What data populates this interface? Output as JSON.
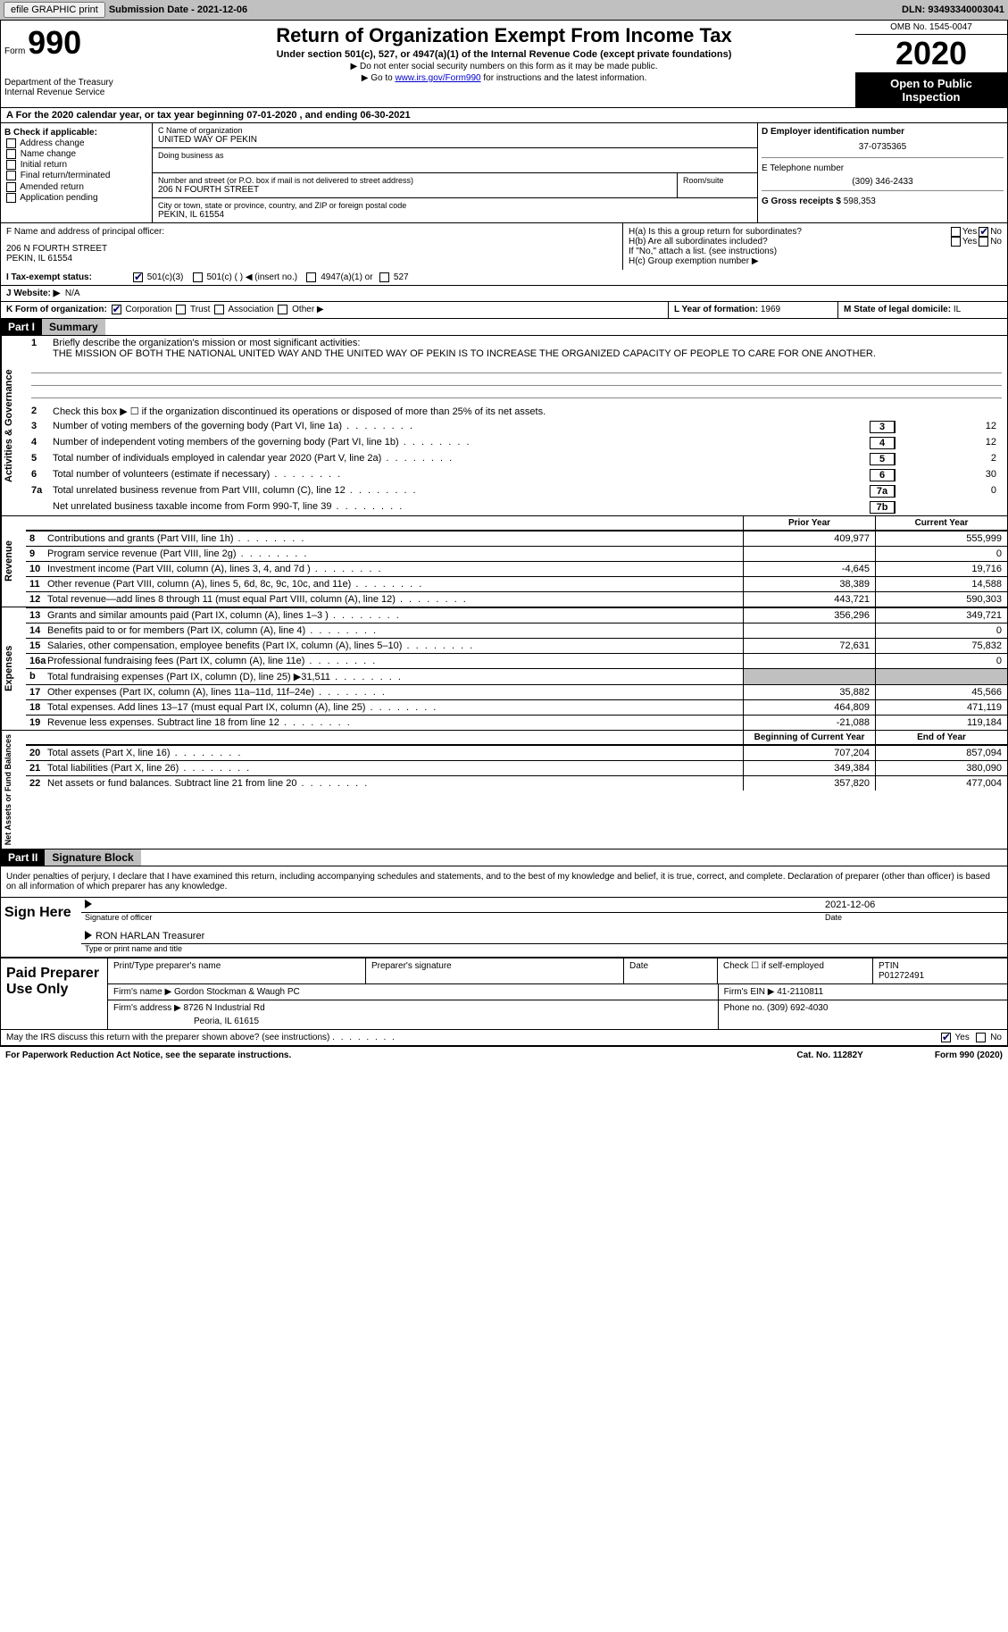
{
  "topbar": {
    "efile_btn": "efile GRAPHIC print",
    "sub_label": "Submission Date - 2021-12-06",
    "dln": "DLN: 93493340003041"
  },
  "header": {
    "form_word": "Form",
    "form_number": "990",
    "dept": "Department of the Treasury",
    "irs": "Internal Revenue Service",
    "title": "Return of Organization Exempt From Income Tax",
    "subtitle": "Under section 501(c), 527, or 4947(a)(1) of the Internal Revenue Code (except private foundations)",
    "arrow1": "▶ Do not enter social security numbers on this form as it may be made public.",
    "arrow2_pre": "▶ Go to ",
    "arrow2_link": "www.irs.gov/Form990",
    "arrow2_post": " for instructions and the latest information.",
    "omb": "OMB No. 1545-0047",
    "year": "2020",
    "inspection1": "Open to Public",
    "inspection2": "Inspection"
  },
  "period": "For the 2020 calendar year, or tax year beginning 07-01-2020   , and ending 06-30-2021",
  "boxB": {
    "hdr": "B Check if applicable:",
    "items": [
      "Address change",
      "Name change",
      "Initial return",
      "Final return/terminated",
      "Amended return",
      "Application pending"
    ]
  },
  "boxC": {
    "name_lbl": "C Name of organization",
    "name": "UNITED WAY OF PEKIN",
    "dba_lbl": "Doing business as",
    "addr_lbl": "Number and street (or P.O. box if mail is not delivered to street address)",
    "room_lbl": "Room/suite",
    "addr": "206 N FOURTH STREET",
    "city_lbl": "City or town, state or province, country, and ZIP or foreign postal code",
    "city": "PEKIN, IL  61554"
  },
  "boxD": {
    "lbl": "D Employer identification number",
    "val": "37-0735365"
  },
  "boxE": {
    "lbl": "E Telephone number",
    "val": "(309) 346-2433"
  },
  "boxG": {
    "lbl": "G Gross receipts $",
    "val": "598,353"
  },
  "boxF": {
    "lbl": "F  Name and address of principal officer:",
    "addr1": "206 N FOURTH STREET",
    "addr2": "PEKIN, IL  61554"
  },
  "boxH": {
    "a_lbl": "H(a)  Is this a group return for subordinates?",
    "yes": "Yes",
    "no": "No",
    "b_lbl": "H(b)  Are all subordinates included?",
    "b_note": "If \"No,\" attach a list. (see instructions)",
    "c_lbl": "H(c)  Group exemption number ▶"
  },
  "rowI": {
    "lbl": "I  Tax-exempt status:",
    "o1": "501(c)(3)",
    "o2": "501(c) (  ) ◀ (insert no.)",
    "o3": "4947(a)(1) or",
    "o4": "527"
  },
  "rowJ": {
    "lbl": "J  Website: ▶",
    "val": "N/A"
  },
  "rowK": {
    "lbl": "K Form of organization:",
    "o1": "Corporation",
    "o2": "Trust",
    "o3": "Association",
    "o4": "Other ▶"
  },
  "rowL": {
    "lbl": "L Year of formation:",
    "val": "1969"
  },
  "rowM": {
    "lbl": "M State of legal domicile:",
    "val": "IL"
  },
  "part1": {
    "hdr": "Part I",
    "title": "Summary"
  },
  "summary": {
    "gov_label": "Activities & Governance",
    "line1_lbl": "Briefly describe the organization's mission or most significant activities:",
    "line1_txt": "THE MISSION OF BOTH THE NATIONAL UNITED WAY AND THE UNITED WAY OF PEKIN IS TO INCREASE THE ORGANIZED CAPACITY OF PEOPLE TO CARE FOR ONE ANOTHER.",
    "line2": "Check this box ▶ ☐  if the organization discontinued its operations or disposed of more than 25% of its net assets.",
    "lines": [
      {
        "n": "3",
        "t": "Number of voting members of the governing body (Part VI, line 1a)",
        "box": "3",
        "v": "12"
      },
      {
        "n": "4",
        "t": "Number of independent voting members of the governing body (Part VI, line 1b)",
        "box": "4",
        "v": "12"
      },
      {
        "n": "5",
        "t": "Total number of individuals employed in calendar year 2020 (Part V, line 2a)",
        "box": "5",
        "v": "2"
      },
      {
        "n": "6",
        "t": "Total number of volunteers (estimate if necessary)",
        "box": "6",
        "v": "30"
      },
      {
        "n": "7a",
        "t": "Total unrelated business revenue from Part VIII, column (C), line 12",
        "box": "7a",
        "v": "0"
      },
      {
        "n": "",
        "t": "Net unrelated business taxable income from Form 990-T, line 39",
        "box": "7b",
        "v": ""
      }
    ],
    "rev_label": "Revenue",
    "col_prior": "Prior Year",
    "col_current": "Current Year",
    "rev_lines": [
      {
        "n": "8",
        "t": "Contributions and grants (Part VIII, line 1h)",
        "p": "409,977",
        "c": "555,999"
      },
      {
        "n": "9",
        "t": "Program service revenue (Part VIII, line 2g)",
        "p": "",
        "c": "0"
      },
      {
        "n": "10",
        "t": "Investment income (Part VIII, column (A), lines 3, 4, and 7d )",
        "p": "-4,645",
        "c": "19,716"
      },
      {
        "n": "11",
        "t": "Other revenue (Part VIII, column (A), lines 5, 6d, 8c, 9c, 10c, and 11e)",
        "p": "38,389",
        "c": "14,588"
      },
      {
        "n": "12",
        "t": "Total revenue—add lines 8 through 11 (must equal Part VIII, column (A), line 12)",
        "p": "443,721",
        "c": "590,303"
      }
    ],
    "exp_label": "Expenses",
    "exp_lines": [
      {
        "n": "13",
        "t": "Grants and similar amounts paid (Part IX, column (A), lines 1–3 )",
        "p": "356,296",
        "c": "349,721"
      },
      {
        "n": "14",
        "t": "Benefits paid to or for members (Part IX, column (A), line 4)",
        "p": "",
        "c": "0"
      },
      {
        "n": "15",
        "t": "Salaries, other compensation, employee benefits (Part IX, column (A), lines 5–10)",
        "p": "72,631",
        "c": "75,832"
      },
      {
        "n": "16a",
        "t": "Professional fundraising fees (Part IX, column (A), line 11e)",
        "p": "",
        "c": "0"
      },
      {
        "n": "b",
        "t": "Total fundraising expenses (Part IX, column (D), line 25) ▶31,511",
        "p": "__shaded__",
        "c": "__shaded__"
      },
      {
        "n": "17",
        "t": "Other expenses (Part IX, column (A), lines 11a–11d, 11f–24e)",
        "p": "35,882",
        "c": "45,566"
      },
      {
        "n": "18",
        "t": "Total expenses. Add lines 13–17 (must equal Part IX, column (A), line 25)",
        "p": "464,809",
        "c": "471,119"
      },
      {
        "n": "19",
        "t": "Revenue less expenses. Subtract line 18 from line 12",
        "p": "-21,088",
        "c": "119,184"
      }
    ],
    "na_label": "Net Assets or Fund Balances",
    "col_begin": "Beginning of Current Year",
    "col_end": "End of Year",
    "na_lines": [
      {
        "n": "20",
        "t": "Total assets (Part X, line 16)",
        "p": "707,204",
        "c": "857,094"
      },
      {
        "n": "21",
        "t": "Total liabilities (Part X, line 26)",
        "p": "349,384",
        "c": "380,090"
      },
      {
        "n": "22",
        "t": "Net assets or fund balances. Subtract line 21 from line 20",
        "p": "357,820",
        "c": "477,004"
      }
    ]
  },
  "part2": {
    "hdr": "Part II",
    "title": "Signature Block"
  },
  "sig": {
    "jurat": "Under penalties of perjury, I declare that I have examined this return, including accompanying schedules and statements, and to the best of my knowledge and belief, it is true, correct, and complete. Declaration of preparer (other than officer) is based on all information of which preparer has any knowledge.",
    "sign_here": "Sign Here",
    "sig_officer": "Signature of officer",
    "date_lbl": "Date",
    "date": "2021-12-06",
    "name": "RON HARLAN Treasurer",
    "name_lbl": "Type or print name and title"
  },
  "paid": {
    "lbl": "Paid Preparer Use Only",
    "r1c1": "Print/Type preparer's name",
    "r1c2": "Preparer's signature",
    "r1c3": "Date",
    "r1c4a": "Check ☐ if self-employed",
    "r1c4b_lbl": "PTIN",
    "r1c4b": "P01272491",
    "r2a": "Firm's name    ▶",
    "r2b": "Gordon Stockman & Waugh PC",
    "r2c_lbl": "Firm's EIN ▶",
    "r2c": "41-2110811",
    "r3a": "Firm's address ▶",
    "r3b": "8726 N Industrial Rd",
    "r3c": "Peoria, IL  61615",
    "r3d_lbl": "Phone no.",
    "r3d": "(309) 692-4030"
  },
  "discuss": {
    "txt": "May the IRS discuss this return with the preparer shown above? (see instructions)",
    "yes": "Yes",
    "no": "No"
  },
  "footer": {
    "l": "For Paperwork Reduction Act Notice, see the separate instructions.",
    "m": "Cat. No. 11282Y",
    "r": "Form 990 (2020)"
  }
}
